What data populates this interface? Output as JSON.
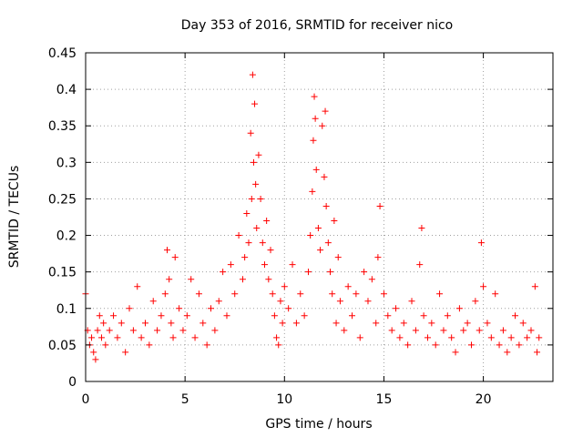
{
  "chart_data": {
    "type": "scatter",
    "title": "Day 353 of 2016, SRMTID for receiver nico",
    "xlabel": "GPS time / hours",
    "ylabel": "SRMTID / TECUs",
    "xlim": [
      0,
      23.5
    ],
    "ylim": [
      0,
      0.45
    ],
    "x_ticks": [
      0,
      5,
      10,
      15,
      20
    ],
    "x_tick_labels": [
      "0",
      "5",
      "10",
      "15",
      "20"
    ],
    "y_ticks": [
      0,
      0.05,
      0.1,
      0.15,
      0.2,
      0.25,
      0.3,
      0.35,
      0.4,
      0.45
    ],
    "y_tick_labels": [
      "0",
      "0.05",
      "0.1",
      "0.15",
      "0.2",
      "0.25",
      "0.3",
      "0.35",
      "0.4",
      "0.45"
    ],
    "grid": true,
    "marker": "plus",
    "colors": {
      "series": "#ff0000",
      "grid": "#a0a0a0",
      "axes": "#000000"
    },
    "series": [
      {
        "x": [
          0.0,
          0.1,
          0.2,
          0.3,
          0.4,
          0.5,
          0.6,
          0.7,
          0.8,
          0.9,
          1.0,
          1.2,
          1.4,
          1.6,
          1.8,
          2.0,
          2.2,
          2.4,
          2.6,
          2.8,
          3.0,
          3.2,
          3.4,
          3.6,
          3.8,
          4.0,
          4.1,
          4.2,
          4.3,
          4.4,
          4.5,
          4.7,
          4.9,
          5.1,
          5.3,
          5.5,
          5.7,
          5.9,
          6.1,
          6.3,
          6.5,
          6.7,
          6.9,
          7.1,
          7.3,
          7.5,
          7.7,
          7.9,
          8.0,
          8.1,
          8.2,
          8.3,
          8.35,
          8.4,
          8.45,
          8.5,
          8.55,
          8.6,
          8.7,
          8.8,
          8.9,
          9.0,
          9.1,
          9.2,
          9.3,
          9.4,
          9.5,
          9.6,
          9.7,
          9.8,
          9.9,
          10.0,
          10.2,
          10.4,
          10.6,
          10.8,
          11.0,
          11.2,
          11.3,
          11.4,
          11.45,
          11.5,
          11.55,
          11.6,
          11.7,
          11.8,
          11.9,
          12.0,
          12.05,
          12.1,
          12.2,
          12.3,
          12.4,
          12.5,
          12.6,
          12.7,
          12.8,
          13.0,
          13.2,
          13.4,
          13.6,
          13.8,
          14.0,
          14.2,
          14.4,
          14.6,
          14.7,
          14.8,
          15.0,
          15.2,
          15.4,
          15.6,
          15.8,
          16.0,
          16.2,
          16.4,
          16.6,
          16.8,
          16.9,
          17.0,
          17.2,
          17.4,
          17.6,
          17.8,
          18.0,
          18.2,
          18.4,
          18.6,
          18.8,
          19.0,
          19.2,
          19.4,
          19.6,
          19.8,
          19.9,
          20.0,
          20.2,
          20.4,
          20.6,
          20.8,
          21.0,
          21.2,
          21.4,
          21.6,
          21.8,
          22.0,
          22.2,
          22.4,
          22.6,
          22.7,
          22.8
        ],
        "y": [
          0.12,
          0.07,
          0.05,
          0.06,
          0.04,
          0.03,
          0.07,
          0.09,
          0.06,
          0.08,
          0.05,
          0.07,
          0.09,
          0.06,
          0.08,
          0.04,
          0.1,
          0.07,
          0.13,
          0.06,
          0.08,
          0.05,
          0.11,
          0.07,
          0.09,
          0.12,
          0.18,
          0.14,
          0.08,
          0.06,
          0.17,
          0.1,
          0.07,
          0.09,
          0.14,
          0.06,
          0.12,
          0.08,
          0.05,
          0.1,
          0.07,
          0.11,
          0.15,
          0.09,
          0.16,
          0.12,
          0.2,
          0.14,
          0.17,
          0.23,
          0.19,
          0.34,
          0.25,
          0.42,
          0.3,
          0.38,
          0.27,
          0.21,
          0.31,
          0.25,
          0.19,
          0.16,
          0.22,
          0.14,
          0.18,
          0.12,
          0.09,
          0.06,
          0.05,
          0.11,
          0.08,
          0.13,
          0.1,
          0.16,
          0.08,
          0.12,
          0.09,
          0.15,
          0.2,
          0.26,
          0.33,
          0.39,
          0.36,
          0.29,
          0.21,
          0.18,
          0.35,
          0.28,
          0.37,
          0.24,
          0.19,
          0.15,
          0.12,
          0.22,
          0.08,
          0.17,
          0.11,
          0.07,
          0.13,
          0.09,
          0.12,
          0.06,
          0.15,
          0.11,
          0.14,
          0.08,
          0.17,
          0.24,
          0.12,
          0.09,
          0.07,
          0.1,
          0.06,
          0.08,
          0.05,
          0.11,
          0.07,
          0.16,
          0.21,
          0.09,
          0.06,
          0.08,
          0.05,
          0.12,
          0.07,
          0.09,
          0.06,
          0.04,
          0.1,
          0.07,
          0.08,
          0.05,
          0.11,
          0.07,
          0.19,
          0.13,
          0.08,
          0.06,
          0.12,
          0.05,
          0.07,
          0.04,
          0.06,
          0.09,
          0.05,
          0.08,
          0.06,
          0.07,
          0.13,
          0.04,
          0.06
        ]
      }
    ]
  }
}
